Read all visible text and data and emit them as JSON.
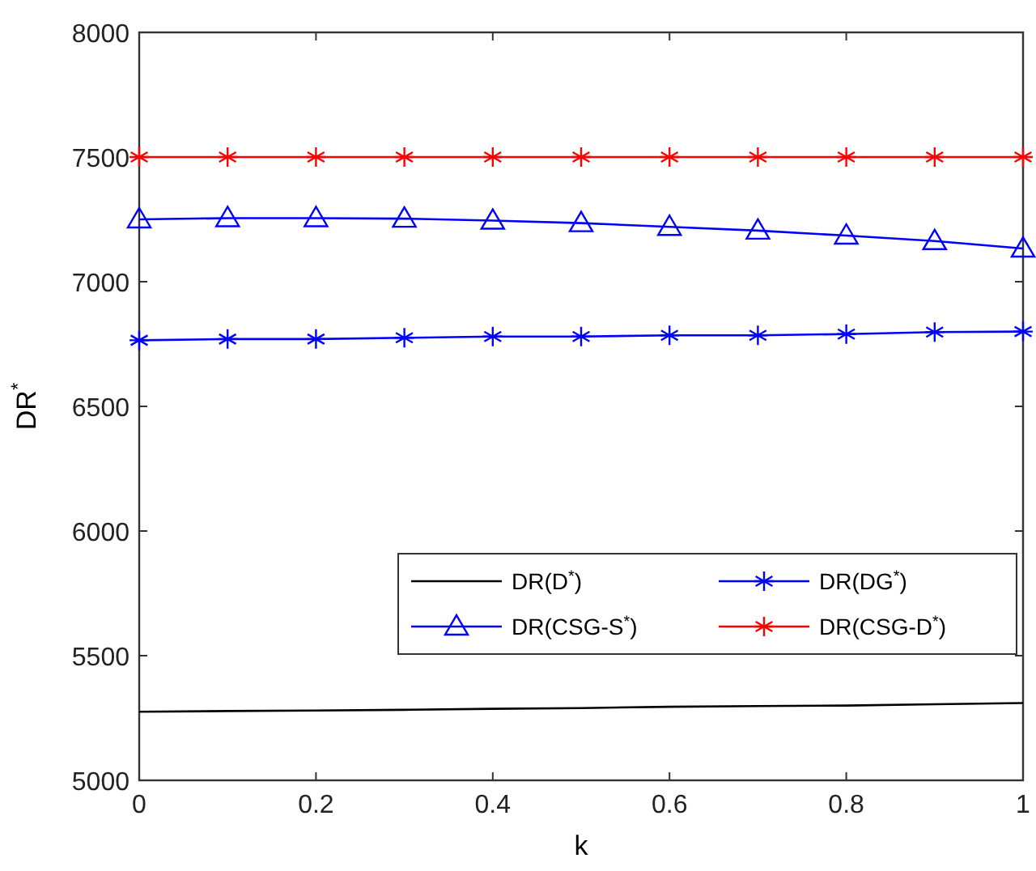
{
  "chart_data": {
    "type": "line",
    "xlabel": "k",
    "ylabel": "DR$^{*}$",
    "x": [
      0,
      0.1,
      0.2,
      0.3,
      0.4,
      0.5,
      0.6,
      0.7,
      0.8,
      0.9,
      1
    ],
    "series": [
      {
        "name": "DR(D$^{*}$)",
        "color": "#000000",
        "marker": "none",
        "values": [
          5275,
          5278,
          5280,
          5283,
          5287,
          5290,
          5295,
          5298,
          5300,
          5305,
          5310
        ]
      },
      {
        "name": "DR(DG$^{*}$)",
        "color": "#0000ff",
        "marker": "cross",
        "values": [
          6765,
          6770,
          6770,
          6775,
          6780,
          6780,
          6785,
          6785,
          6790,
          6798,
          6800
        ]
      },
      {
        "name": "DR(CSG-S$^{*}$)",
        "color": "#0000ff",
        "marker": "triangle",
        "values": [
          7250,
          7255,
          7255,
          7253,
          7245,
          7235,
          7220,
          7205,
          7185,
          7163,
          7133
        ]
      },
      {
        "name": "DR(CSG-D$^{*}$)",
        "color": "#ff0000",
        "marker": "cross",
        "values": [
          7500,
          7500,
          7500,
          7500,
          7500,
          7500,
          7500,
          7500,
          7500,
          7500,
          7500
        ]
      }
    ],
    "xlim": [
      0,
      1
    ],
    "xticks": [
      0,
      0.2,
      0.4,
      0.6,
      0.8,
      1
    ],
    "ylim": [
      5000,
      8000
    ],
    "yticks": [
      5000,
      5500,
      6000,
      6500,
      7000,
      7500,
      8000
    ],
    "grid": false,
    "legend": "bottom right",
    "line_style": "solid"
  }
}
